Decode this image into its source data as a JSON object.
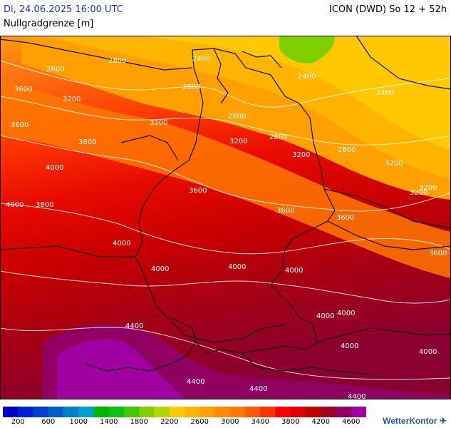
{
  "header": {
    "datetime": "Di, 24.06.2025 16:00 UTC",
    "model": "ICON (DWD) So 12 + 52h",
    "parameter": "Nullgradgrenze [m]"
  },
  "map_labels": [
    "2800",
    "2800",
    "2400",
    "2400",
    "3600",
    "3200",
    "3600",
    "3200",
    "2800",
    "2800",
    "2800",
    "2400",
    "3800",
    "3200",
    "3200",
    "2800",
    "4000",
    "3600",
    "3600",
    "3200",
    "3600",
    "3200",
    "3200",
    "4000",
    "3800",
    "4000",
    "4000",
    "4000",
    "3600",
    "4000",
    "4000",
    "4000",
    "4400",
    "4000",
    "4400",
    "4400",
    "4000",
    "4400"
  ],
  "legend": {
    "colors": [
      "#0000c8",
      "#0020d8",
      "#0040d0",
      "#0060c8",
      "#0080c8",
      "#00a0d0",
      "#00b400",
      "#10c010",
      "#40c800",
      "#80d000",
      "#b0d800",
      "#ffc800",
      "#ffb400",
      "#ffa000",
      "#ff8c00",
      "#ff7800",
      "#ff5a00",
      "#ff3200",
      "#ff0000",
      "#e00000",
      "#c00000",
      "#a00020",
      "#900060",
      "#a000a0"
    ],
    "labels": [
      "200",
      "600",
      "1000",
      "1400",
      "1800",
      "2200",
      "2600",
      "3000",
      "3400",
      "3800",
      "4200",
      "4600"
    ]
  },
  "brand": "WetterKontor"
}
